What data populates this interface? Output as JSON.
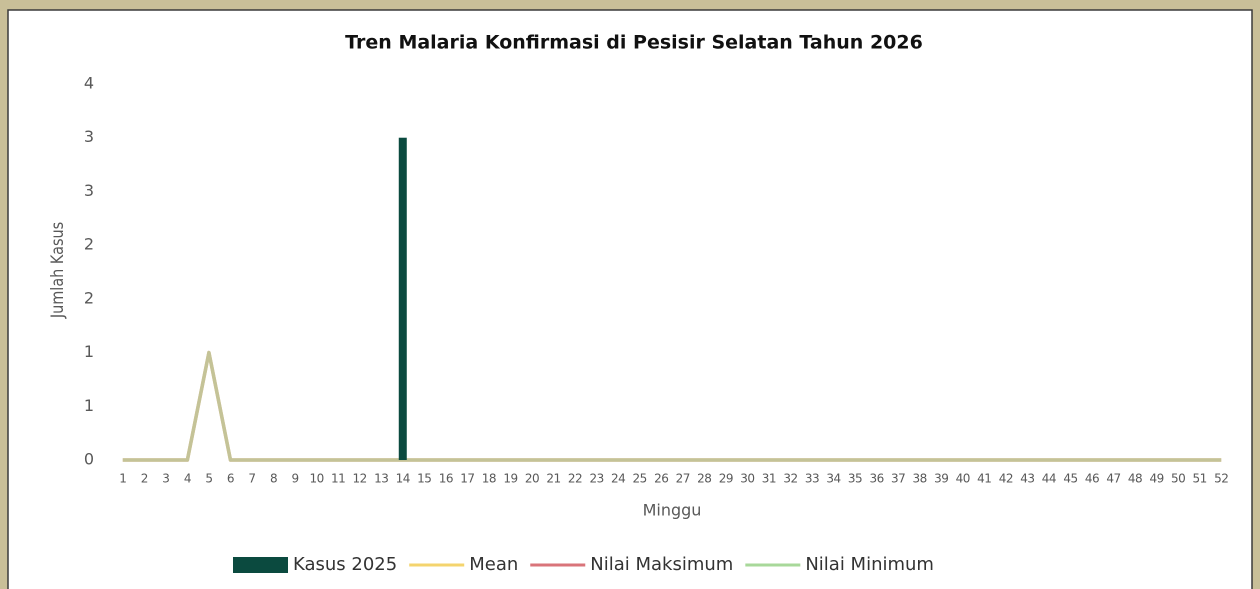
{
  "chart_data": {
    "type": "bar",
    "title": "Tren Malaria Konfirmasi di Pesisir Selatan Tahun 2026",
    "x_label": "Minggu",
    "y_label": "Jumlah Kasus",
    "categories": [
      "1",
      "2",
      "3",
      "4",
      "5",
      "6",
      "7",
      "8",
      "9",
      "10",
      "11",
      "12",
      "13",
      "14",
      "15",
      "16",
      "17",
      "18",
      "19",
      "20",
      "21",
      "22",
      "23",
      "24",
      "25",
      "26",
      "27",
      "28",
      "29",
      "30",
      "31",
      "32",
      "33",
      "34",
      "35",
      "36",
      "37",
      "38",
      "39",
      "40",
      "41",
      "42",
      "43",
      "44",
      "45",
      "46",
      "47",
      "48",
      "49",
      "50",
      "51",
      "52"
    ],
    "series": [
      {
        "name": "Kasus 2025",
        "type": "bar",
        "color": "#0b4a3f",
        "values": [
          0,
          0,
          0,
          0,
          0,
          0,
          0,
          0,
          0,
          0,
          0,
          0,
          0,
          3,
          0,
          0,
          0,
          0,
          0,
          0,
          0,
          0,
          0,
          0,
          0,
          0,
          0,
          0,
          0,
          0,
          0,
          0,
          0,
          0,
          0,
          0,
          0,
          0,
          0,
          0,
          0,
          0,
          0,
          0,
          0,
          0,
          0,
          0,
          0,
          0,
          0,
          0
        ]
      },
      {
        "name": "Mean",
        "type": "line",
        "color": "#f4d46e",
        "values": [
          0,
          0,
          0,
          0,
          1,
          0,
          0,
          0,
          0,
          0,
          0,
          0,
          0,
          0,
          0,
          0,
          0,
          0,
          0,
          0,
          0,
          0,
          0,
          0,
          0,
          0,
          0,
          0,
          0,
          0,
          0,
          0,
          0,
          0,
          0,
          0,
          0,
          0,
          0,
          0,
          0,
          0,
          0,
          0,
          0,
          0,
          0,
          0,
          0,
          0,
          0,
          0
        ]
      },
      {
        "name": "Nilai Maksimum",
        "type": "line",
        "color": "#d9747a",
        "values": [
          0,
          0,
          0,
          0,
          1,
          0,
          0,
          0,
          0,
          0,
          0,
          0,
          0,
          0,
          0,
          0,
          0,
          0,
          0,
          0,
          0,
          0,
          0,
          0,
          0,
          0,
          0,
          0,
          0,
          0,
          0,
          0,
          0,
          0,
          0,
          0,
          0,
          0,
          0,
          0,
          0,
          0,
          0,
          0,
          0,
          0,
          0,
          0,
          0,
          0,
          0,
          0
        ]
      },
      {
        "name": "Nilai Minimum",
        "type": "line",
        "color": "#a8d89a",
        "values": [
          0,
          0,
          0,
          0,
          1,
          0,
          0,
          0,
          0,
          0,
          0,
          0,
          0,
          0,
          0,
          0,
          0,
          0,
          0,
          0,
          0,
          0,
          0,
          0,
          0,
          0,
          0,
          0,
          0,
          0,
          0,
          0,
          0,
          0,
          0,
          0,
          0,
          0,
          0,
          0,
          0,
          0,
          0,
          0,
          0,
          0,
          0,
          0,
          0,
          0,
          0,
          0
        ]
      }
    ],
    "ylim": [
      0,
      3.5
    ],
    "yticks": [
      0,
      {
        "value": 0.5,
        "label": "1"
      },
      1,
      {
        "value": 1.5,
        "label": "2"
      },
      2,
      {
        "value": 2.5,
        "label": "3"
      },
      3,
      {
        "value": 3.5,
        "label": "4"
      }
    ],
    "grid": false,
    "legend": "bottom"
  }
}
